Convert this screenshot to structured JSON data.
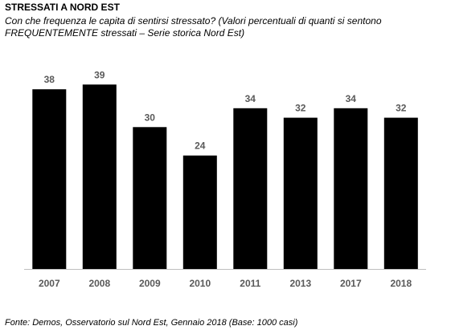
{
  "chart_data": {
    "type": "bar",
    "title": "STRESSATI A NORD EST",
    "subtitle": "Con che frequenza le capita di sentirsi stressato? (Valori percentuali di quanti si sentono FREQUENTEMENTE stressati – Serie storica Nord Est)",
    "categories": [
      "2007",
      "2008",
      "2009",
      "2010",
      "2011",
      "2013",
      "2017",
      "2018"
    ],
    "values": [
      38,
      39,
      30,
      24,
      34,
      32,
      34,
      32
    ],
    "data_labels": [
      "38",
      "39",
      "30",
      "24",
      "34",
      "32",
      "34",
      "32"
    ],
    "ylim": [
      0,
      45
    ],
    "grid": false,
    "bar_color": "#000000",
    "label_color": "#595959",
    "axis_color": "#bfbfbf"
  },
  "source": "Fonte: Demos, Osservatorio sul Nord Est, Gennaio  2018 (Base: 1000 casi)"
}
